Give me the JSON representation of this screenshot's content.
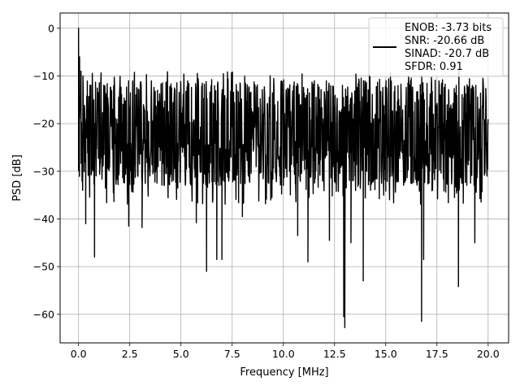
{
  "chart_data": {
    "type": "line",
    "title": "",
    "xlabel": "Frequency [MHz]",
    "ylabel": "PSD [dB]",
    "xlim": [
      -0.9,
      21.0
    ],
    "ylim": [
      -66.0,
      3.2
    ],
    "x_ticks": [
      0.0,
      2.5,
      5.0,
      7.5,
      10.0,
      12.5,
      15.0,
      17.5,
      20.0
    ],
    "x_tick_labels": [
      "0.0",
      "2.5",
      "5.0",
      "7.5",
      "10.0",
      "12.5",
      "15.0",
      "17.5",
      "20.0"
    ],
    "y_ticks": [
      0,
      -10,
      -20,
      -30,
      -40,
      -50,
      -60
    ],
    "y_tick_labels": [
      "0",
      "−10",
      "−20",
      "−30",
      "−40",
      "−50",
      "−60"
    ],
    "grid": true,
    "legend_position": "top-right",
    "legend_entries": [
      "ENOB: -3.73 bits",
      "SNR: -20.66 dB",
      "SINAD: -20.7 dB",
      "SFDR: 0.91"
    ],
    "line_color": "#000000",
    "series": [
      {
        "x_range": [
          0.0,
          20.0
        ],
        "noise_floor": {
          "center": -20.5,
          "upper_typical": -11,
          "lower_typical": -33
        },
        "points": [
          {
            "x": 0.0,
            "y": 0.0
          },
          {
            "x": 0.02,
            "y": -13.0
          },
          {
            "x": 0.05,
            "y": -6.0
          },
          {
            "x": 0.08,
            "y": -17.0
          },
          {
            "x": 0.12,
            "y": -9.0
          },
          {
            "x": 0.35,
            "y": -41.0
          },
          {
            "x": 0.78,
            "y": -48.0
          },
          {
            "x": 2.45,
            "y": -41.5
          },
          {
            "x": 3.1,
            "y": -41.8
          },
          {
            "x": 5.75,
            "y": -40.8
          },
          {
            "x": 6.25,
            "y": -51.0
          },
          {
            "x": 6.75,
            "y": -48.5
          },
          {
            "x": 7.0,
            "y": -48.5
          },
          {
            "x": 8.0,
            "y": -39.5
          },
          {
            "x": 10.7,
            "y": -43.5
          },
          {
            "x": 11.2,
            "y": -49.0
          },
          {
            "x": 12.25,
            "y": -44.5
          },
          {
            "x": 12.95,
            "y": -60.5
          },
          {
            "x": 13.0,
            "y": -62.8
          },
          {
            "x": 13.3,
            "y": -45.0
          },
          {
            "x": 13.9,
            "y": -53.0
          },
          {
            "x": 16.75,
            "y": -61.5
          },
          {
            "x": 16.85,
            "y": -48.5
          },
          {
            "x": 18.55,
            "y": -54.2
          },
          {
            "x": 19.35,
            "y": -45.0
          }
        ]
      }
    ]
  }
}
